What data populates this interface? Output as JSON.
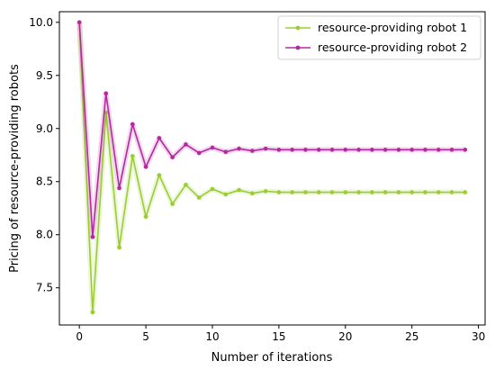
{
  "chart_data": {
    "type": "line",
    "title": "",
    "xlabel": "Number of iterations",
    "ylabel": "Pricing of resource-providing robots",
    "xlim": [
      -1.5,
      30.5
    ],
    "ylim": [
      7.15,
      10.1
    ],
    "xticks": [
      0,
      5,
      10,
      15,
      20,
      25,
      30
    ],
    "yticks": [
      7.5,
      8.0,
      8.5,
      9.0,
      9.5,
      10.0
    ],
    "xtick_labels": [
      "0",
      "5",
      "10",
      "15",
      "20",
      "25",
      "30"
    ],
    "ytick_labels": [
      "7.5",
      "8.0",
      "8.5",
      "9.0",
      "9.5",
      "10.0"
    ],
    "grid": false,
    "legend_position": "top-right",
    "x": [
      0,
      1,
      2,
      3,
      4,
      5,
      6,
      7,
      8,
      9,
      10,
      11,
      12,
      13,
      14,
      15,
      16,
      17,
      18,
      19,
      20,
      21,
      22,
      23,
      24,
      25,
      26,
      27,
      28,
      29
    ],
    "series": [
      {
        "name": "resource-providing robot 1",
        "color": "#9ACD32",
        "values": [
          10.0,
          7.27,
          9.15,
          7.88,
          8.74,
          8.17,
          8.56,
          8.29,
          8.47,
          8.35,
          8.43,
          8.38,
          8.42,
          8.39,
          8.41,
          8.4,
          8.4,
          8.4,
          8.4,
          8.4,
          8.4,
          8.4,
          8.4,
          8.4,
          8.4,
          8.4,
          8.4,
          8.4,
          8.4,
          8.4
        ]
      },
      {
        "name": "resource-providing robot 2",
        "color": "#B5299E",
        "values": [
          10.0,
          7.98,
          9.33,
          8.44,
          9.04,
          8.64,
          8.91,
          8.73,
          8.85,
          8.77,
          8.82,
          8.78,
          8.81,
          8.79,
          8.81,
          8.8,
          8.8,
          8.8,
          8.8,
          8.8,
          8.8,
          8.8,
          8.8,
          8.8,
          8.8,
          8.8,
          8.8,
          8.8,
          8.8,
          8.8
        ]
      }
    ]
  }
}
